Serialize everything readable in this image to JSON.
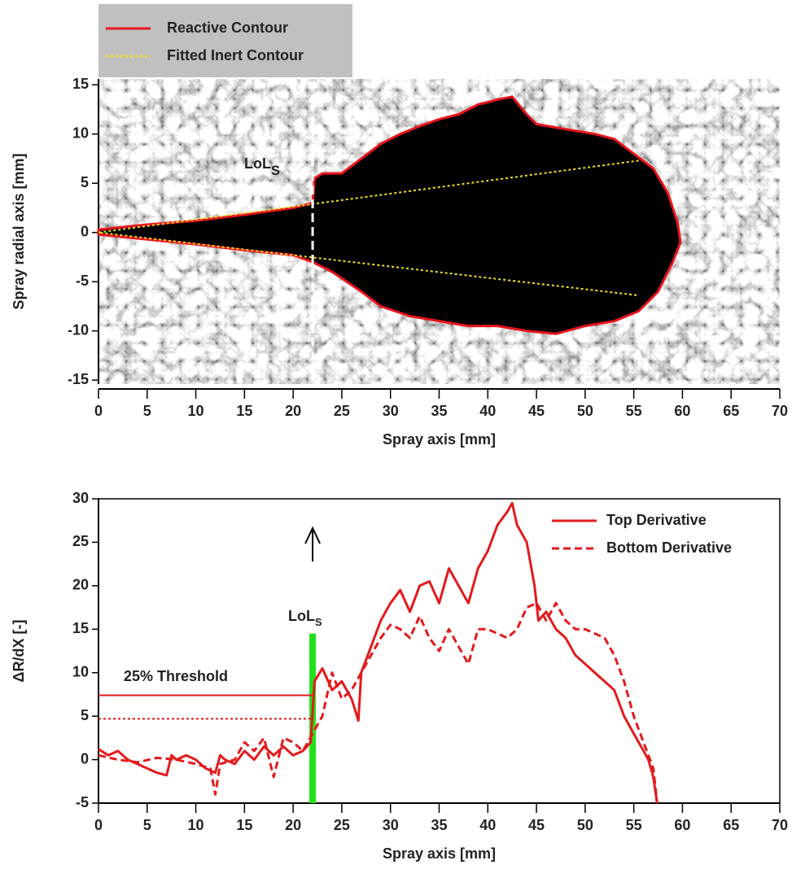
{
  "chart_data": [
    {
      "type": "line",
      "xlabel": "Spray axis [mm]",
      "ylabel": "Spray radial axis [mm]",
      "xlim": [
        0,
        70
      ],
      "ylim": [
        -15.4,
        15.6
      ],
      "xticks": [
        0,
        5,
        10,
        15,
        20,
        25,
        30,
        35,
        40,
        45,
        50,
        55,
        60,
        65,
        70
      ],
      "yticks": [
        -15,
        -10,
        -5,
        0,
        5,
        10,
        15
      ],
      "legend": "top left",
      "legend_background": "#c0c0c0",
      "series": [
        {
          "name": "Reactive Contour",
          "color": "#e8141c",
          "dash": "solid",
          "fill": "#000000",
          "x": [
            0,
            5,
            10,
            15,
            20,
            22,
            22.2,
            23,
            25,
            27,
            29,
            31,
            33,
            35,
            37,
            39,
            41,
            42.5,
            44,
            45,
            48,
            51,
            53,
            55,
            57,
            58.5,
            59.5,
            59.8,
            59,
            57.5,
            55.5,
            53,
            50,
            47,
            44,
            41,
            38,
            35,
            32,
            29,
            27,
            24,
            22,
            20,
            15,
            10,
            5,
            0
          ],
          "y": [
            0.3,
            0.8,
            1.2,
            1.8,
            2.5,
            3,
            5.5,
            6,
            6,
            7.5,
            9,
            10,
            10.8,
            11.5,
            12,
            13,
            13.5,
            13.8,
            12,
            11,
            10.5,
            10,
            9.5,
            8,
            6.5,
            4,
            1,
            -1,
            -3,
            -6,
            -8,
            -9,
            -9.5,
            -10.3,
            -10,
            -9.5,
            -9.5,
            -9,
            -8.5,
            -7.5,
            -6,
            -4,
            -3,
            -2.3,
            -1.8,
            -1.2,
            -0.7,
            -0.2
          ]
        },
        {
          "name": "Fitted Inert Contour",
          "color": "#f0e020",
          "dash": "dotted",
          "x": [
            55.5,
            0,
            55.5
          ],
          "y": [
            7.3,
            0,
            -6.4
          ]
        }
      ],
      "vline": {
        "x": 22,
        "ymin": -13,
        "ymax": 14,
        "color": "#ffffff"
      },
      "annotations": [
        {
          "text": "LoL",
          "subscript": "S"
        }
      ]
    },
    {
      "type": "line",
      "xlabel": "Spray axis [mm]",
      "ylabel": "ΔR/dX [-]",
      "xlim": [
        0,
        70
      ],
      "ylim": [
        -5,
        30
      ],
      "xticks": [
        0,
        5,
        10,
        15,
        20,
        25,
        30,
        35,
        40,
        45,
        50,
        55,
        60,
        65,
        70
      ],
      "yticks": [
        -5,
        0,
        5,
        10,
        15,
        20,
        25,
        30
      ],
      "legend": "upper right",
      "series": [
        {
          "name": "Top Derivative",
          "color": "#e31a1c",
          "dash": "solid",
          "x": [
            0,
            1,
            2,
            3,
            4,
            5,
            6,
            7,
            7.5,
            8,
            9,
            10,
            11,
            12,
            12.5,
            13,
            14,
            15,
            16,
            17,
            18,
            19,
            20,
            21,
            21.8,
            22.2,
            23,
            24,
            25,
            26,
            26.7,
            27,
            28,
            29,
            30,
            31,
            32,
            33,
            34,
            35,
            36,
            37,
            38,
            39,
            40,
            41,
            42,
            42.5,
            43,
            44,
            44.8,
            45.2,
            46,
            47,
            48,
            49,
            50,
            51,
            52,
            53,
            54,
            55,
            56,
            56.5,
            57,
            57.4
          ],
          "y": [
            1.2,
            0.5,
            1,
            0,
            -0.5,
            -1,
            -1.5,
            -1.8,
            0.5,
            0,
            0.5,
            0,
            -1,
            -1.5,
            0.5,
            0,
            -0.5,
            1,
            0,
            1.5,
            0.5,
            1.5,
            0.5,
            1,
            2,
            9,
            10.5,
            8,
            9,
            7,
            4.5,
            10,
            13,
            16,
            18,
            19.5,
            17,
            20,
            20.5,
            18,
            22,
            20,
            18,
            22,
            24,
            27,
            28.5,
            29.5,
            27,
            25,
            20,
            16,
            17,
            15,
            14,
            12,
            11,
            10,
            9,
            8,
            5,
            3,
            1,
            0,
            -2,
            -5
          ]
        },
        {
          "name": "Bottom Derivative",
          "color": "#e31a1c",
          "dash": "dashed",
          "x": [
            0,
            2,
            4,
            6,
            8,
            10,
            11.5,
            12,
            12.5,
            14,
            15,
            16,
            17,
            18,
            19,
            20,
            21,
            22,
            23,
            24,
            25,
            26,
            27,
            28,
            29,
            30,
            31,
            32,
            33,
            34,
            35,
            36,
            37,
            38,
            39,
            40,
            41,
            42,
            43,
            44,
            45,
            46,
            47,
            48,
            49,
            50,
            51,
            52,
            53,
            54,
            55,
            56,
            57,
            57.4
          ],
          "y": [
            0.5,
            0,
            -0.3,
            0.2,
            0,
            -0.5,
            -1,
            -4,
            -0.5,
            0,
            2,
            1,
            2.5,
            -2,
            2.5,
            2,
            1,
            3,
            5,
            10,
            7,
            8,
            10,
            12,
            14,
            15.5,
            15,
            14,
            16.5,
            14,
            12.5,
            15,
            13,
            11,
            15,
            15,
            14.5,
            14,
            15,
            17.5,
            18,
            16,
            18,
            16,
            15,
            15,
            14.5,
            14,
            12,
            9,
            5,
            2,
            -1,
            -5
          ]
        }
      ],
      "band": {
        "x": 22,
        "ymin": -5,
        "ymax": 14.5,
        "color": "#22e01e"
      },
      "thresholds": [
        {
          "value": 7.4,
          "dash": "solid"
        },
        {
          "value": 4.7,
          "dash": "dotted"
        }
      ],
      "annotations": [
        {
          "text": "LoL",
          "subscript": "S"
        },
        {
          "text": "25% Threshold"
        }
      ]
    }
  ]
}
